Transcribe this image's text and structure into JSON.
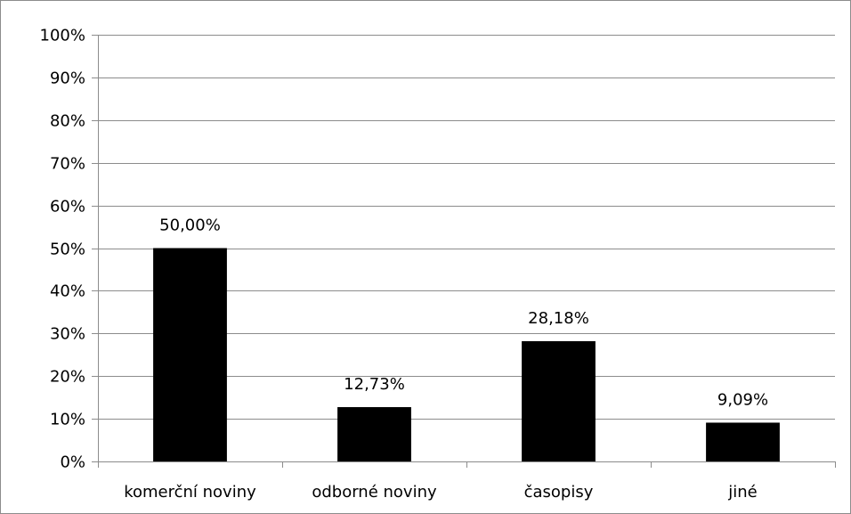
{
  "chart_data": {
    "type": "bar",
    "categories": [
      "komerční noviny",
      "odborné noviny",
      "časopisy",
      "jiné"
    ],
    "values": [
      50.0,
      12.73,
      28.18,
      9.09
    ],
    "data_labels": [
      "50,00%",
      "12,73%",
      "28,18%",
      "9,09%"
    ],
    "ytick_labels": [
      "0%",
      "10%",
      "20%",
      "30%",
      "40%",
      "50%",
      "60%",
      "70%",
      "80%",
      "90%",
      "100%"
    ],
    "ylim": [
      0,
      100
    ],
    "grid": true,
    "bar_color": "#000000",
    "grid_color": "#8c8c8c",
    "title": "",
    "xlabel": "",
    "ylabel": ""
  }
}
